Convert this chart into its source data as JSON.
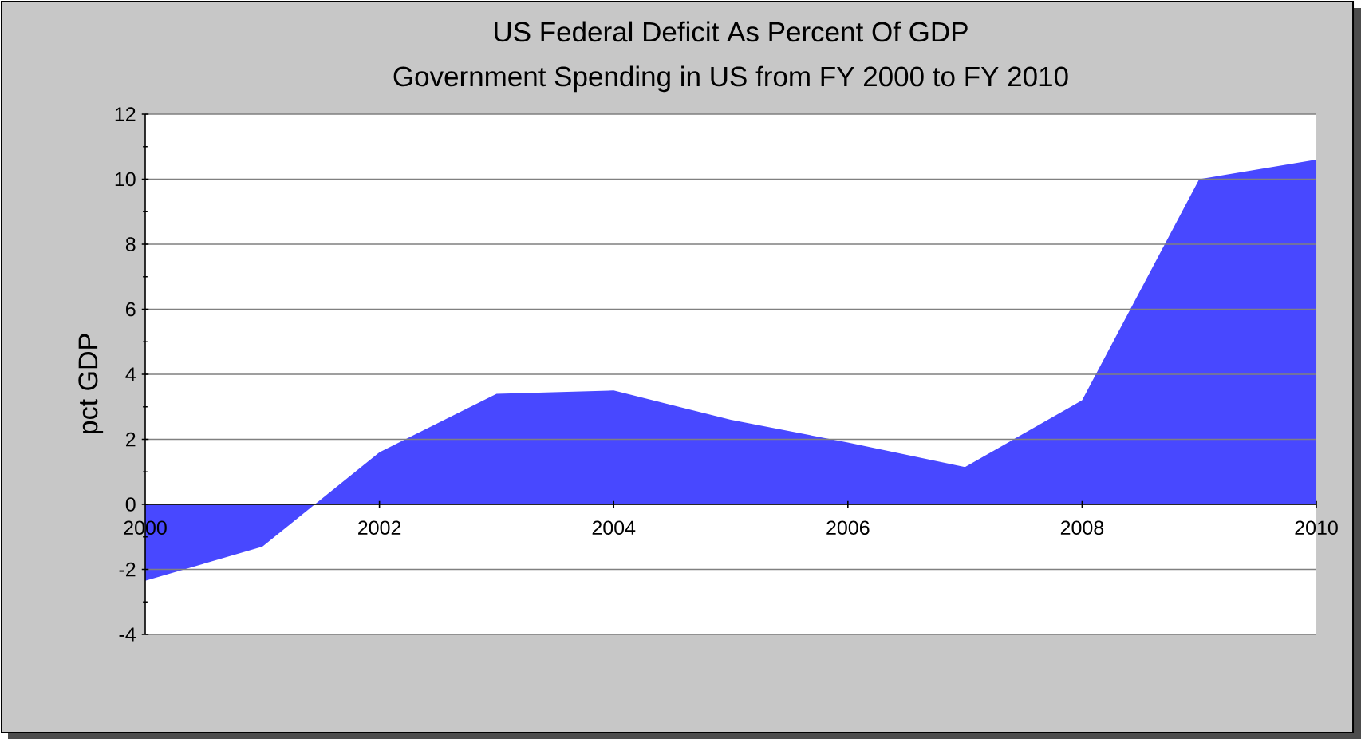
{
  "chart_data": {
    "type": "area",
    "title": "US Federal Deficit As Percent Of GDP",
    "subtitle": "Government Spending in US from FY 2000 to FY 2010",
    "ylabel": "pct GDP",
    "x": [
      2000,
      2001,
      2002,
      2003,
      2004,
      2005,
      2006,
      2007,
      2008,
      2009,
      2010
    ],
    "series": [
      {
        "color": "#4848ff",
        "values": [
          -2.35,
          -1.3,
          1.6,
          3.4,
          3.5,
          2.6,
          1.9,
          1.15,
          3.2,
          10.0,
          10.6
        ]
      }
    ],
    "xlim": [
      2000,
      2010
    ],
    "ylim": [
      -4,
      12
    ],
    "xticks": [
      2000,
      2002,
      2004,
      2006,
      2008,
      2010
    ],
    "yticks": [
      -4,
      -2,
      0,
      2,
      4,
      6,
      8,
      10,
      12
    ],
    "grid": "y"
  }
}
